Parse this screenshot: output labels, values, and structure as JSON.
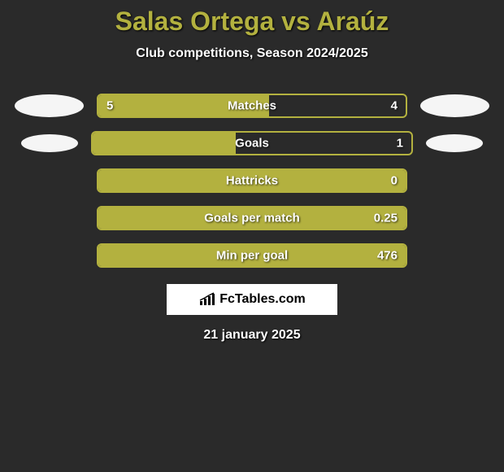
{
  "title": "Salas Ortega vs Araúz",
  "subtitle": "Club competitions, Season 2024/2025",
  "colors": {
    "accent": "#b3b13f",
    "background": "#2a2a2a",
    "ellipse": "#f5f5f5",
    "text": "#ffffff"
  },
  "stats": [
    {
      "label": "Matches",
      "left_value": "5",
      "right_value": "4",
      "fill_pct": 55.5,
      "left_show": true,
      "left_ellipse": "filled",
      "right_ellipse": "filled"
    },
    {
      "label": "Goals",
      "left_value": "",
      "right_value": "1",
      "fill_pct": 45,
      "left_show": false,
      "left_ellipse": "filled_small",
      "right_ellipse": "filled_small"
    },
    {
      "label": "Hattricks",
      "left_value": "",
      "right_value": "0",
      "fill_pct": 100,
      "left_show": false,
      "left_ellipse": "blank",
      "right_ellipse": "blank"
    },
    {
      "label": "Goals per match",
      "left_value": "",
      "right_value": "0.25",
      "fill_pct": 100,
      "left_show": false,
      "left_ellipse": "blank",
      "right_ellipse": "blank"
    },
    {
      "label": "Min per goal",
      "left_value": "",
      "right_value": "476",
      "fill_pct": 100,
      "left_show": false,
      "left_ellipse": "blank",
      "right_ellipse": "blank"
    }
  ],
  "logo": {
    "text": "FcTables.com"
  },
  "date": "21 january 2025"
}
